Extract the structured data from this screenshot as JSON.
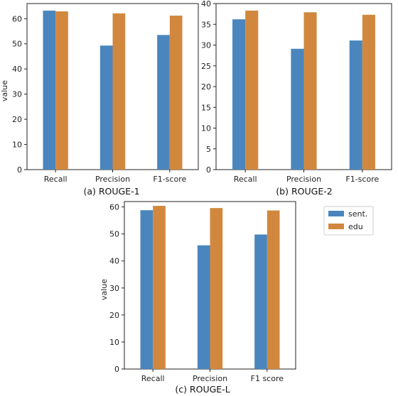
{
  "colors": {
    "sent": "#4a86bd",
    "edu": "#d1883e"
  },
  "legend": {
    "entries": [
      "sent.",
      "edu"
    ]
  },
  "chart_data": [
    {
      "type": "bar",
      "title": "(a) ROUGE-1",
      "xlabel": "",
      "ylabel": "value",
      "categories": [
        "Recall",
        "Precision",
        "F1-score"
      ],
      "ylim": [
        0,
        66
      ],
      "yticks": [
        "0",
        "10",
        "20",
        "30",
        "40",
        "50",
        "60"
      ],
      "series": [
        {
          "name": "sent.",
          "values": [
            63.2,
            49.3,
            53.5
          ]
        },
        {
          "name": "edu",
          "values": [
            62.9,
            62.1,
            61.2
          ]
        }
      ]
    },
    {
      "type": "bar",
      "title": "(b) ROUGE-2",
      "xlabel": "",
      "ylabel": "",
      "categories": [
        "Recall",
        "Precision",
        "F1-score"
      ],
      "ylim": [
        0,
        40
      ],
      "yticks": [
        "0",
        "5",
        "10",
        "15",
        "20",
        "25",
        "30",
        "35",
        "40"
      ],
      "series": [
        {
          "name": "sent.",
          "values": [
            36.2,
            29.1,
            31.1
          ]
        },
        {
          "name": "edu",
          "values": [
            38.3,
            37.9,
            37.3
          ]
        }
      ]
    },
    {
      "type": "bar",
      "title": "(c) ROUGE-L",
      "xlabel": "",
      "ylabel": "value",
      "categories": [
        "Recall",
        "Precision",
        "F1 score"
      ],
      "ylim": [
        0,
        62
      ],
      "yticks": [
        "0",
        "10",
        "20",
        "30",
        "40",
        "50",
        "60"
      ],
      "series": [
        {
          "name": "sent.",
          "values": [
            58.8,
            45.8,
            49.8
          ]
        },
        {
          "name": "edu",
          "values": [
            60.4,
            59.6,
            58.7
          ]
        }
      ]
    }
  ]
}
